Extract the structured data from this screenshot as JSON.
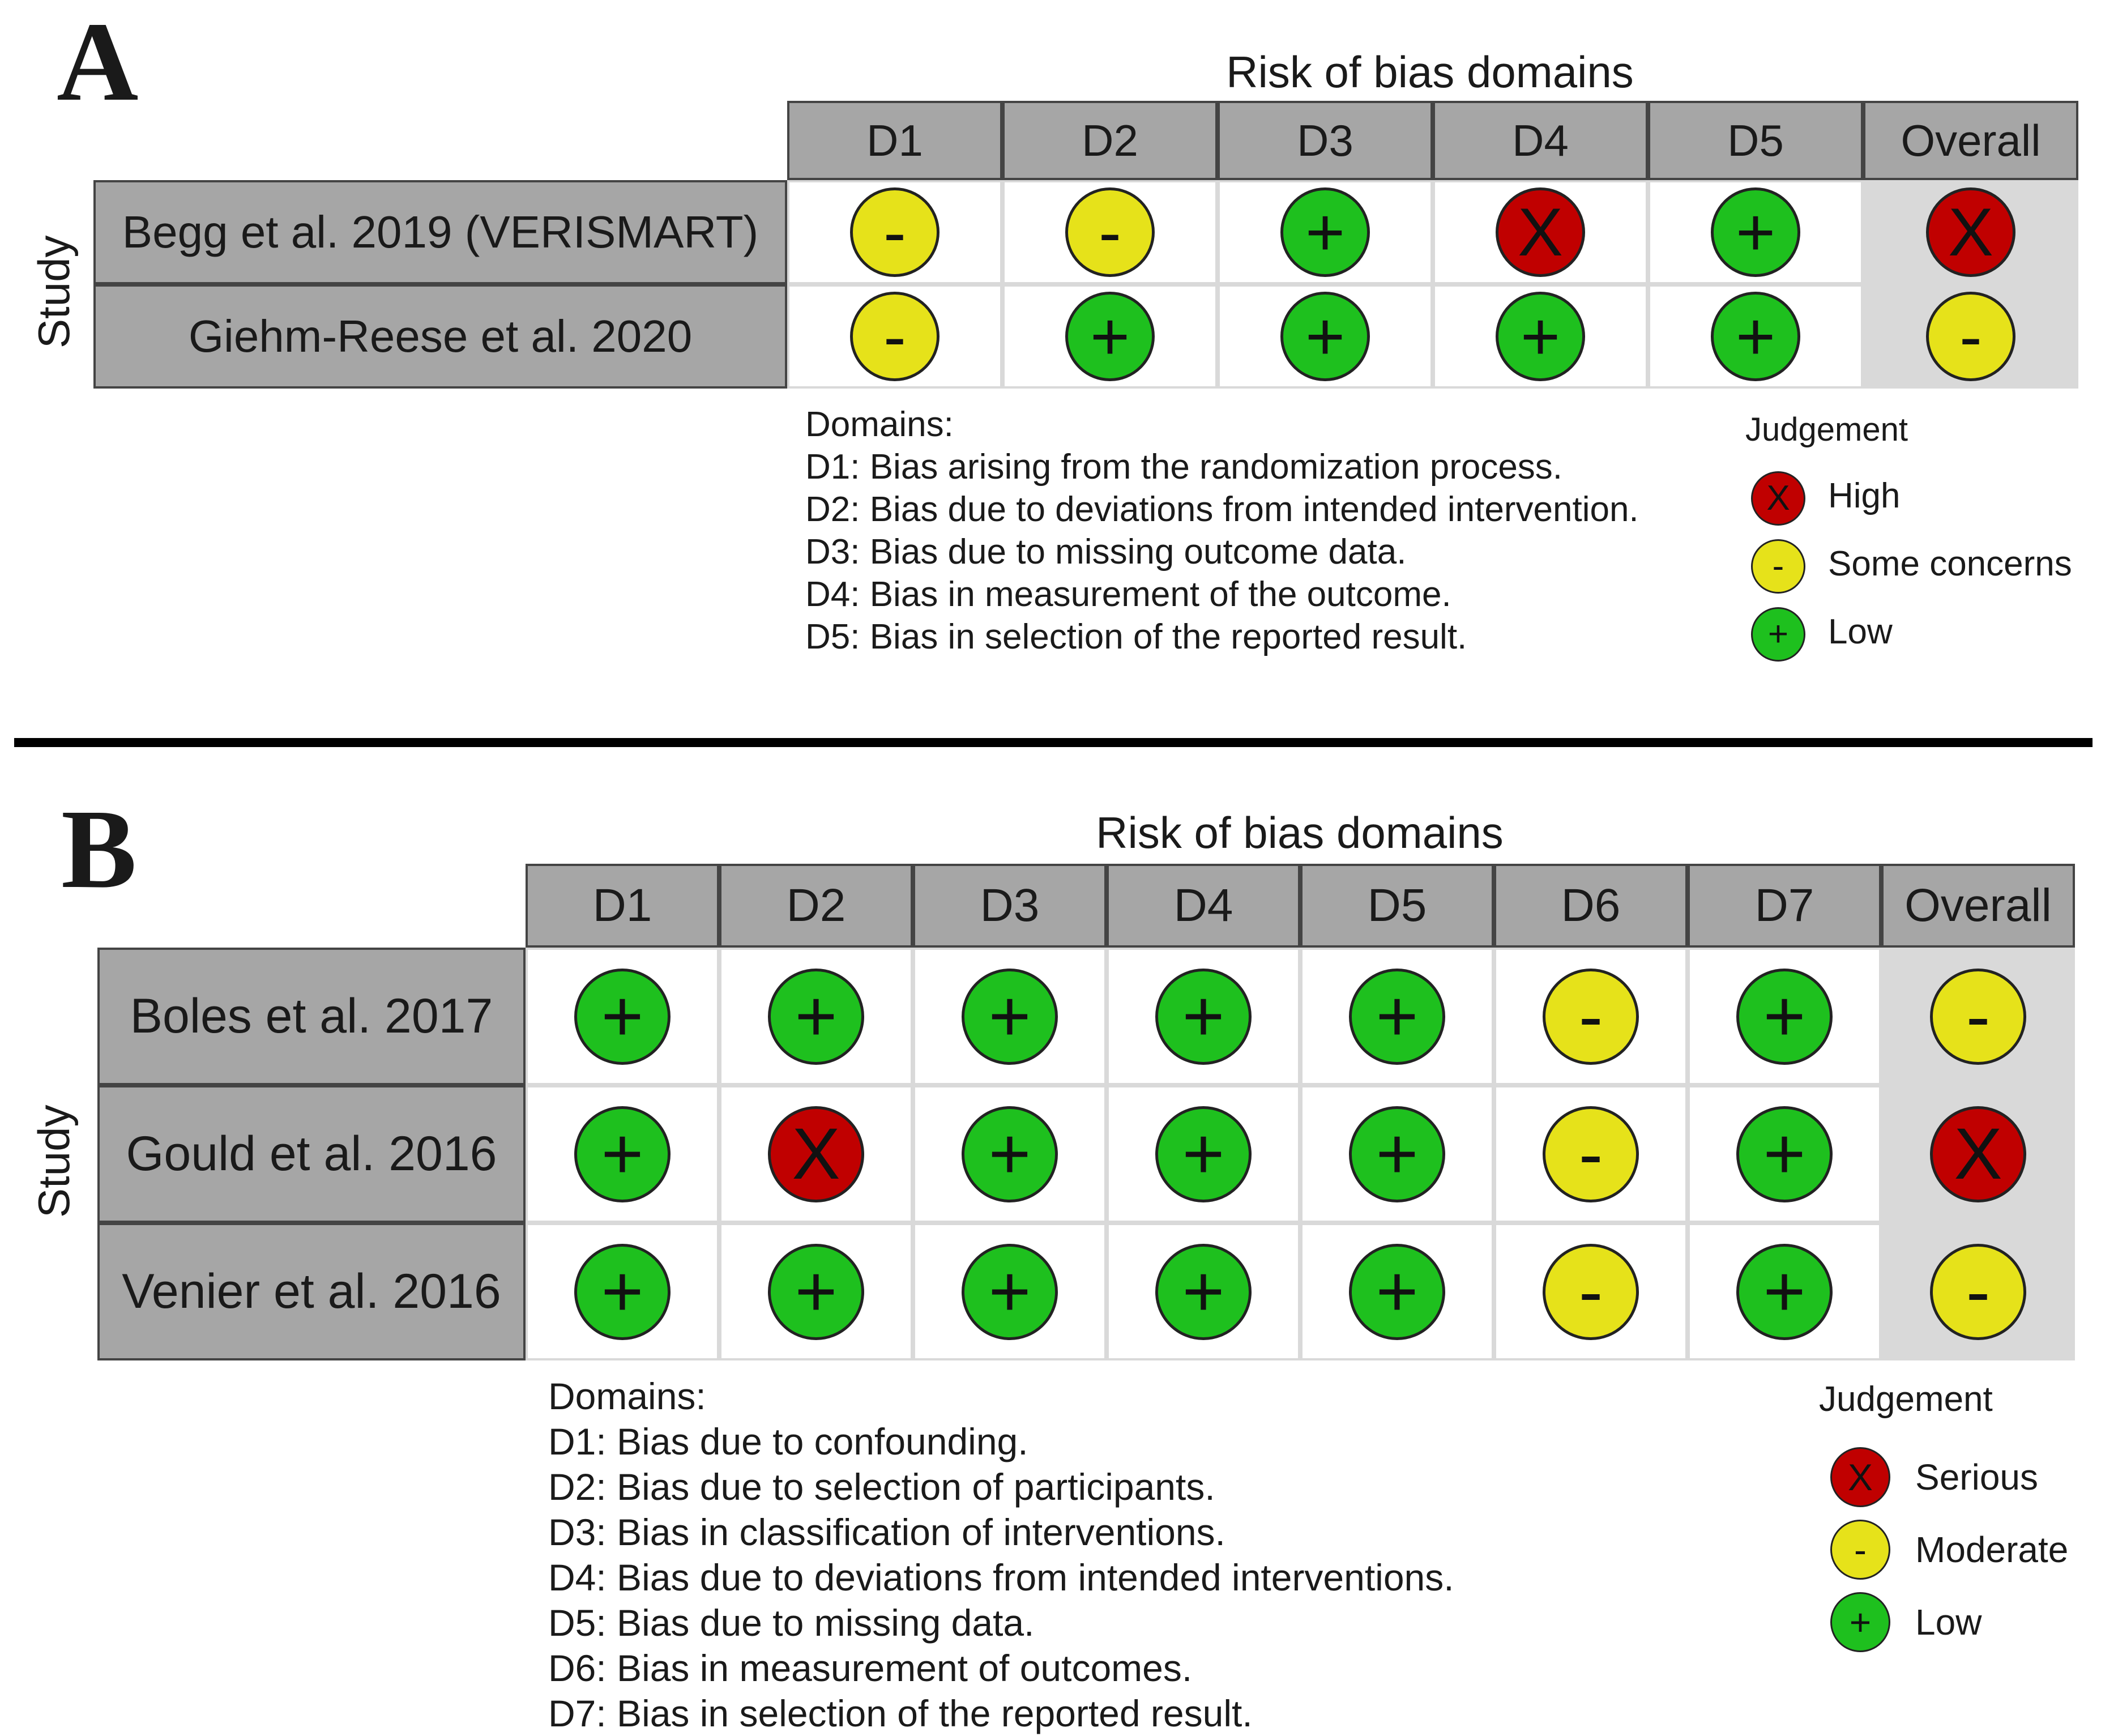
{
  "symbols": {
    "high": {
      "glyph": "X",
      "color": "#c00000"
    },
    "some": {
      "glyph": "-",
      "color": "#e6e21a"
    },
    "low": {
      "glyph": "+",
      "color": "#1ec01e"
    }
  },
  "panel_a": {
    "letter": "A",
    "title": "Risk of bias domains",
    "axis_label": "Study",
    "domains": [
      "D1",
      "D2",
      "D3",
      "D4",
      "D5",
      "Overall"
    ],
    "studies": [
      {
        "name": "Begg et al. 2019 (VERISMART)",
        "judgements": [
          "some",
          "some",
          "low",
          "high",
          "low",
          "high"
        ]
      },
      {
        "name": "Giehm-Reese et al. 2020",
        "judgements": [
          "some",
          "low",
          "low",
          "low",
          "low",
          "some"
        ]
      }
    ],
    "domains_legend": [
      "Domains:",
      "D1: Bias arising from the randomization process.",
      "D2: Bias due to deviations from intended intervention.",
      "D3: Bias due to missing outcome data.",
      "D4: Bias in measurement of the outcome.",
      "D5: Bias in selection of the reported result."
    ],
    "judgement_title": "Judgement",
    "judgement_legend": [
      {
        "level": "high",
        "label": "High"
      },
      {
        "level": "some",
        "label": "Some concerns"
      },
      {
        "level": "low",
        "label": "Low"
      }
    ]
  },
  "panel_b": {
    "letter": "B",
    "title": "Risk of bias domains",
    "axis_label": "Study",
    "domains": [
      "D1",
      "D2",
      "D3",
      "D4",
      "D5",
      "D6",
      "D7",
      "Overall"
    ],
    "studies": [
      {
        "name": "Boles et al. 2017",
        "judgements": [
          "low",
          "low",
          "low",
          "low",
          "low",
          "some",
          "low",
          "some"
        ]
      },
      {
        "name": "Gould et al. 2016",
        "judgements": [
          "low",
          "high",
          "low",
          "low",
          "low",
          "some",
          "low",
          "high"
        ]
      },
      {
        "name": "Venier et al. 2016",
        "judgements": [
          "low",
          "low",
          "low",
          "low",
          "low",
          "some",
          "low",
          "some"
        ]
      }
    ],
    "domains_legend": [
      "Domains:",
      "D1: Bias due to confounding.",
      "D2: Bias due to selection of participants.",
      "D3: Bias in classification of interventions.",
      "D4: Bias due to deviations from intended interventions.",
      "D5: Bias due to missing data.",
      "D6: Bias in measurement of outcomes.",
      "D7: Bias in selection of the reported result."
    ],
    "judgement_title": "Judgement",
    "judgement_legend": [
      {
        "level": "high",
        "label": "Serious"
      },
      {
        "level": "some",
        "label": "Moderate"
      },
      {
        "level": "low",
        "label": "Low"
      }
    ]
  }
}
